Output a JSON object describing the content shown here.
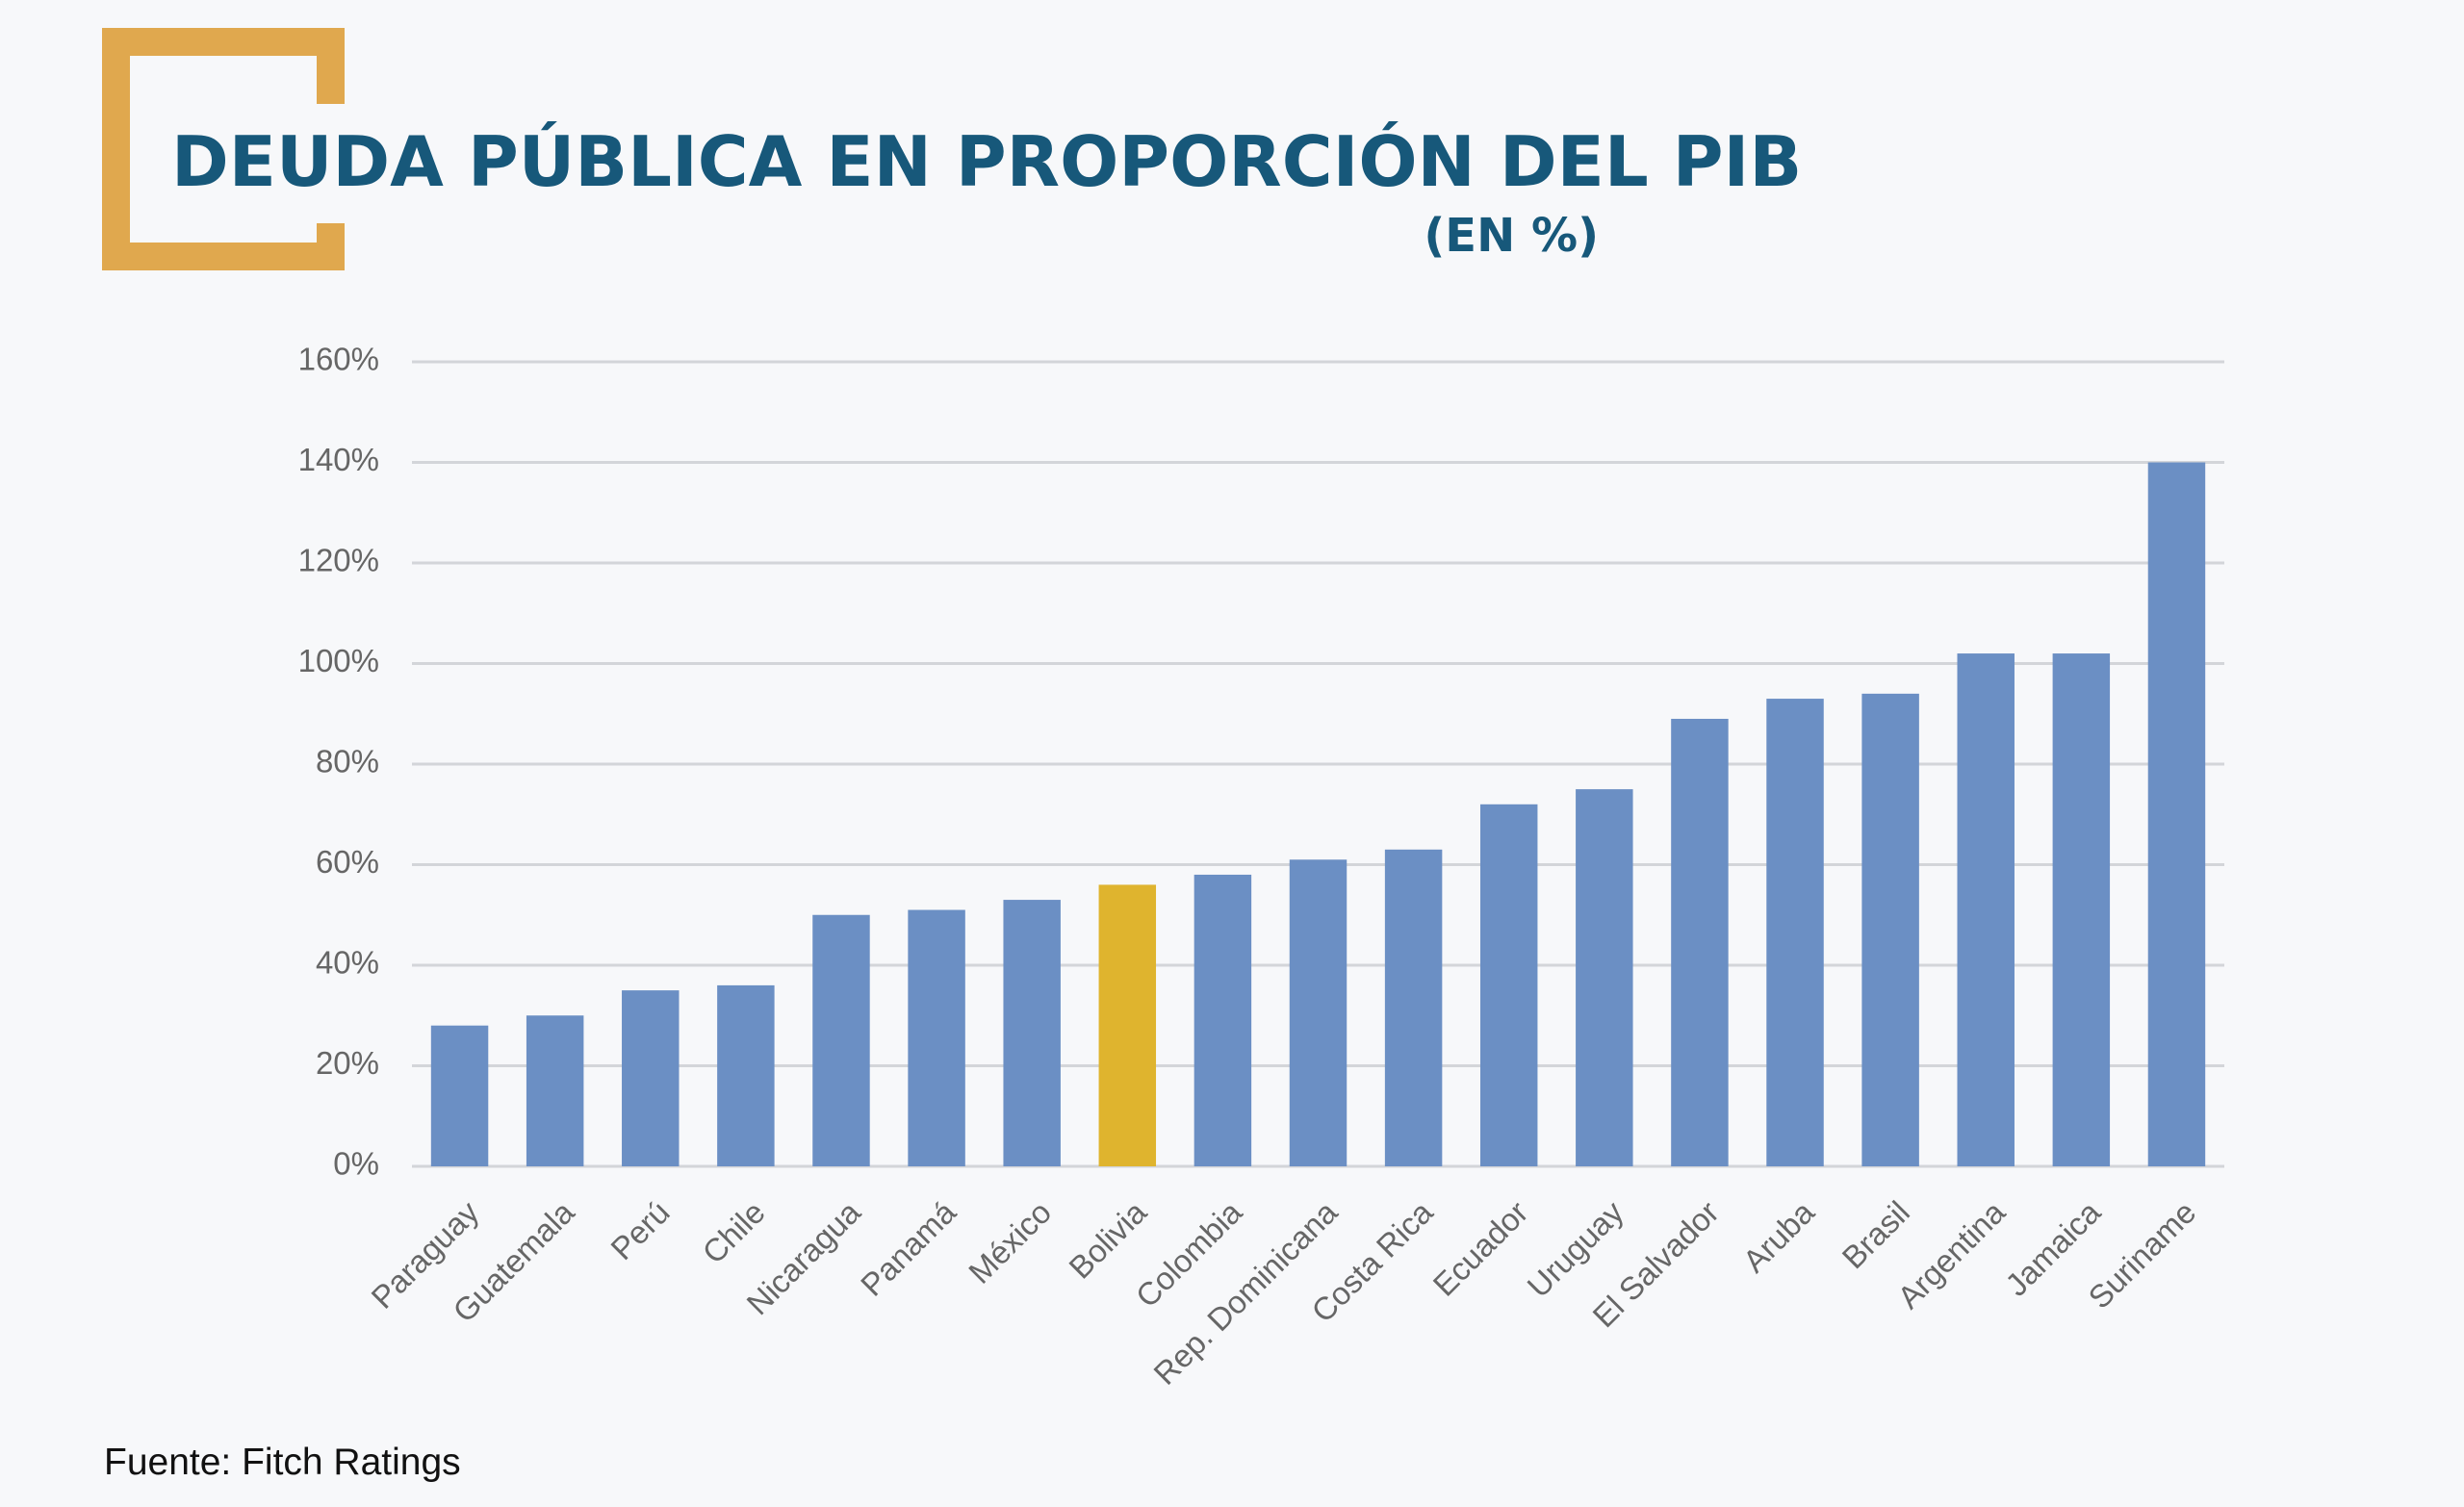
{
  "chart_data": {
    "type": "bar",
    "title": "DEUDA PÚBLICA EN PROPORCIÓN DEL PIB",
    "subtitle": "(EN %)",
    "source": "Fuente: Fitch Ratings",
    "categories": [
      "Paraguay",
      "Guatemala",
      "Perú",
      "Chile",
      "Nicaragua",
      "Panamá",
      "México",
      "Bolivia",
      "Colombia",
      "Rep. Dominicana",
      "Costa Rica",
      "Ecuador",
      "Uruguay",
      "El Salvador",
      "Aruba",
      "Brasil",
      "Argentina",
      "Jamaica",
      "Suriname"
    ],
    "values": [
      28,
      30,
      35,
      36,
      50,
      51,
      53,
      56,
      58,
      61,
      63,
      72,
      75,
      89,
      93,
      94,
      102,
      102,
      140
    ],
    "colors": [
      "#6b8fc4",
      "#6b8fc4",
      "#6b8fc4",
      "#6b8fc4",
      "#6b8fc4",
      "#6b8fc4",
      "#6b8fc4",
      "#dfb42e",
      "#6b8fc4",
      "#6b8fc4",
      "#6b8fc4",
      "#6b8fc4",
      "#6b8fc4",
      "#6b8fc4",
      "#6b8fc4",
      "#6b8fc4",
      "#6b8fc4",
      "#6b8fc4",
      "#6b8fc4"
    ],
    "ylim": [
      0,
      160
    ],
    "yticks": [
      {
        "value": 0,
        "label": "0%"
      },
      {
        "value": 20,
        "label": "20%"
      },
      {
        "value": 40,
        "label": "40%"
      },
      {
        "value": 60,
        "label": "60%"
      },
      {
        "value": 80,
        "label": "80%"
      },
      {
        "value": 100,
        "label": "100%"
      },
      {
        "value": 120,
        "label": "120%"
      },
      {
        "value": 140,
        "label": "140%"
      },
      {
        "value": 160,
        "label": "160%"
      }
    ],
    "grid": true
  }
}
